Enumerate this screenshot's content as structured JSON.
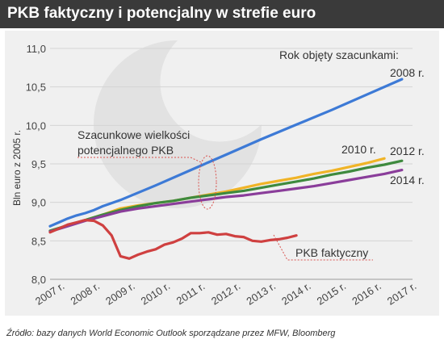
{
  "header": {
    "title": "PKB faktyczny i potencjalny w strefie euro"
  },
  "footer": {
    "source": "Źródło: bazy danych World Economic Outlook sporządzane przez MFW, Bloomberg"
  },
  "colors": {
    "title_bg": "#3a3a3a",
    "panel_bg": "#f0f0f0",
    "annotation": "#d9534f"
  },
  "chart_data": {
    "type": "line",
    "title": "",
    "xlabel": "",
    "ylabel": "Bln euro z 2005 r.",
    "xlim": [
      2007,
      2017.3
    ],
    "ylim": [
      8.0,
      11.0
    ],
    "x_ticks": [
      2007,
      2008,
      2009,
      2010,
      2011,
      2012,
      2013,
      2014,
      2015,
      2016,
      2017
    ],
    "x_tick_labels": [
      "2007 r.",
      "2008 r.",
      "2009 r.",
      "2010 r.",
      "2011 r.",
      "2012 r.",
      "2013 r.",
      "2014 r.",
      "2015 r.",
      "2016 r.",
      "2017 r."
    ],
    "y_ticks": [
      8.0,
      8.5,
      9.0,
      9.5,
      10.0,
      10.5,
      11.0
    ],
    "y_tick_labels": [
      "8,0",
      "8,5",
      "9,0",
      "9,5",
      "10,0",
      "10,5",
      "11,0"
    ],
    "grid": "horizontal",
    "legend_title": "Rok objęty szacunkami:",
    "series": [
      {
        "name": "2008 r.",
        "color": "#3d7ad6",
        "points": [
          [
            2007.0,
            8.69
          ],
          [
            2007.25,
            8.74
          ],
          [
            2007.5,
            8.79
          ],
          [
            2007.75,
            8.83
          ],
          [
            2008.0,
            8.86
          ],
          [
            2008.25,
            8.9
          ],
          [
            2008.5,
            8.95
          ],
          [
            2009.0,
            9.03
          ],
          [
            2010.0,
            9.22
          ],
          [
            2011.0,
            9.42
          ],
          [
            2012.0,
            9.62
          ],
          [
            2013.0,
            9.82
          ],
          [
            2014.0,
            10.01
          ],
          [
            2015.0,
            10.2
          ],
          [
            2016.0,
            10.4
          ],
          [
            2017.0,
            10.6
          ]
        ]
      },
      {
        "name": "2010 r.",
        "color": "#f0b427",
        "points": [
          [
            2007.0,
            8.63
          ],
          [
            2007.5,
            8.7
          ],
          [
            2008.0,
            8.77
          ],
          [
            2008.5,
            8.84
          ],
          [
            2009.0,
            8.92
          ],
          [
            2009.5,
            8.96
          ],
          [
            2010.0,
            8.99
          ],
          [
            2010.5,
            9.02
          ],
          [
            2011.0,
            9.06
          ],
          [
            2011.5,
            9.1
          ],
          [
            2012.0,
            9.14
          ],
          [
            2012.5,
            9.19
          ],
          [
            2013.0,
            9.24
          ],
          [
            2013.5,
            9.28
          ],
          [
            2014.0,
            9.32
          ],
          [
            2014.5,
            9.37
          ],
          [
            2015.0,
            9.41
          ],
          [
            2015.5,
            9.46
          ],
          [
            2016.0,
            9.51
          ],
          [
            2016.5,
            9.57
          ]
        ]
      },
      {
        "name": "2012 r.",
        "color": "#3e8a3e",
        "points": [
          [
            2007.0,
            8.63
          ],
          [
            2007.5,
            8.7
          ],
          [
            2008.0,
            8.77
          ],
          [
            2008.5,
            8.84
          ],
          [
            2009.0,
            8.9
          ],
          [
            2009.5,
            8.95
          ],
          [
            2010.0,
            8.99
          ],
          [
            2010.5,
            9.02
          ],
          [
            2011.0,
            9.06
          ],
          [
            2011.5,
            9.09
          ],
          [
            2012.0,
            9.12
          ],
          [
            2012.5,
            9.15
          ],
          [
            2013.0,
            9.19
          ],
          [
            2013.5,
            9.23
          ],
          [
            2014.0,
            9.27
          ],
          [
            2014.5,
            9.31
          ],
          [
            2015.0,
            9.36
          ],
          [
            2015.5,
            9.4
          ],
          [
            2016.0,
            9.45
          ],
          [
            2016.5,
            9.49
          ],
          [
            2017.0,
            9.54
          ]
        ]
      },
      {
        "name": "2014 r.",
        "color": "#8a3d9a",
        "points": [
          [
            2007.0,
            8.62
          ],
          [
            2007.5,
            8.69
          ],
          [
            2008.0,
            8.76
          ],
          [
            2008.5,
            8.82
          ],
          [
            2009.0,
            8.88
          ],
          [
            2009.5,
            8.92
          ],
          [
            2010.0,
            8.95
          ],
          [
            2010.5,
            8.98
          ],
          [
            2011.0,
            9.01
          ],
          [
            2011.5,
            9.04
          ],
          [
            2012.0,
            9.07
          ],
          [
            2012.5,
            9.09
          ],
          [
            2013.0,
            9.12
          ],
          [
            2013.5,
            9.15
          ],
          [
            2014.0,
            9.18
          ],
          [
            2014.5,
            9.21
          ],
          [
            2015.0,
            9.25
          ],
          [
            2015.5,
            9.29
          ],
          [
            2016.0,
            9.33
          ],
          [
            2016.5,
            9.37
          ],
          [
            2017.0,
            9.42
          ]
        ]
      },
      {
        "name": "PKB faktyczny",
        "color": "#cf4040",
        "points": [
          [
            2007.0,
            8.61
          ],
          [
            2007.25,
            8.66
          ],
          [
            2007.5,
            8.71
          ],
          [
            2007.75,
            8.74
          ],
          [
            2008.0,
            8.77
          ],
          [
            2008.25,
            8.76
          ],
          [
            2008.5,
            8.7
          ],
          [
            2008.75,
            8.57
          ],
          [
            2009.0,
            8.3
          ],
          [
            2009.25,
            8.27
          ],
          [
            2009.5,
            8.32
          ],
          [
            2009.75,
            8.36
          ],
          [
            2010.0,
            8.39
          ],
          [
            2010.25,
            8.45
          ],
          [
            2010.5,
            8.48
          ],
          [
            2010.75,
            8.53
          ],
          [
            2011.0,
            8.6
          ],
          [
            2011.25,
            8.6
          ],
          [
            2011.5,
            8.61
          ],
          [
            2011.75,
            8.58
          ],
          [
            2012.0,
            8.59
          ],
          [
            2012.25,
            8.56
          ],
          [
            2012.5,
            8.55
          ],
          [
            2012.75,
            8.5
          ],
          [
            2013.0,
            8.49
          ],
          [
            2013.25,
            8.51
          ],
          [
            2013.5,
            8.52
          ],
          [
            2013.75,
            8.54
          ],
          [
            2014.0,
            8.57
          ]
        ]
      }
    ],
    "annotations": {
      "potential_label": "Szacunkowe wielkości potencjalnego PKB",
      "actual_label": "PKB faktyczny"
    }
  }
}
